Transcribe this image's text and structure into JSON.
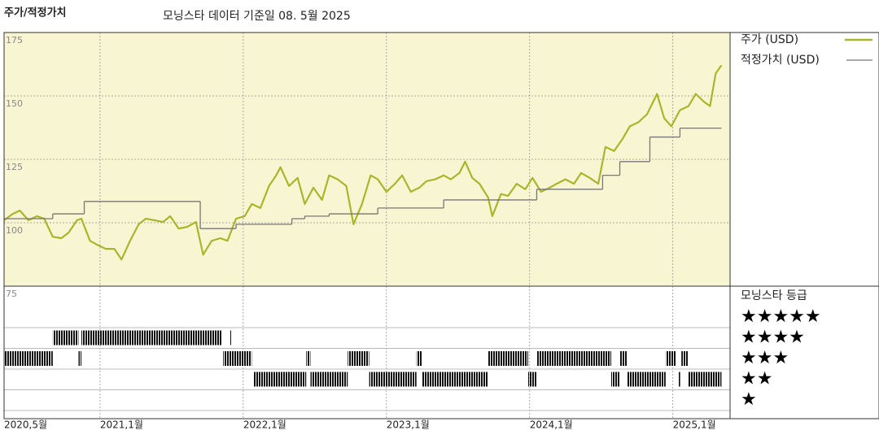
{
  "chart_data": {
    "type": "line",
    "title": "주가/적정가치",
    "subtitle": "모닝스타 데이터 기준일 08. 5월 2025",
    "xlim": [
      2020.33,
      2025.4
    ],
    "xticks": [
      {
        "value": 2020.33,
        "label": "2020,5월"
      },
      {
        "value": 2021,
        "label": "2021,1월"
      },
      {
        "value": 2022,
        "label": "2022,1월"
      },
      {
        "value": 2023,
        "label": "2023,1월"
      },
      {
        "value": 2024,
        "label": "2024,1월"
      },
      {
        "value": 2025,
        "label": "2025,1월"
      }
    ],
    "ylim": [
      75,
      175
    ],
    "yticks": [
      75,
      100,
      125,
      150,
      175
    ],
    "grid": true,
    "series": [
      {
        "name": "주가 (USD)",
        "color": "#a9b52a",
        "x": [
          2020.33,
          2020.39,
          2020.44,
          2020.5,
          2020.56,
          2020.61,
          2020.67,
          2020.73,
          2020.78,
          2020.84,
          2020.87,
          2020.93,
          2020.98,
          2021.04,
          2021.1,
          2021.15,
          2021.21,
          2021.27,
          2021.32,
          2021.38,
          2021.44,
          2021.49,
          2021.55,
          2021.61,
          2021.67,
          2021.72,
          2021.78,
          2021.84,
          2021.89,
          2021.95,
          2022.01,
          2022.06,
          2022.12,
          2022.18,
          2022.23,
          2022.26,
          2022.32,
          2022.38,
          2022.43,
          2022.49,
          2022.55,
          2022.6,
          2022.66,
          2022.72,
          2022.77,
          2022.83,
          2022.89,
          2022.94,
          2023.0,
          2023.06,
          2023.11,
          2023.17,
          2023.23,
          2023.28,
          2023.34,
          2023.4,
          2023.45,
          2023.51,
          2023.55,
          2023.6,
          2023.65,
          2023.71,
          2023.74,
          2023.8,
          2023.85,
          2023.91,
          2023.97,
          2024.02,
          2024.08,
          2024.14,
          2024.19,
          2024.25,
          2024.31,
          2024.36,
          2024.42,
          2024.48,
          2024.53,
          2024.59,
          2024.65,
          2024.7,
          2024.76,
          2024.82,
          2024.89,
          2024.94,
          2024.99,
          2025.05,
          2025.11,
          2025.16,
          2025.22,
          2025.26,
          2025.3,
          2025.34
        ],
        "values": [
          101.0,
          103.5,
          104.8,
          101.0,
          102.6,
          101.6,
          94.5,
          93.9,
          96.1,
          101.0,
          101.6,
          92.9,
          91.3,
          89.7,
          89.7,
          85.5,
          92.9,
          99.4,
          101.6,
          101.0,
          100.3,
          102.6,
          97.7,
          98.4,
          100.3,
          87.4,
          92.9,
          93.9,
          92.9,
          101.6,
          102.6,
          107.4,
          105.8,
          114.5,
          118.7,
          121.9,
          114.5,
          117.7,
          107.4,
          113.8,
          109.0,
          118.7,
          117.1,
          114.5,
          99.4,
          107.4,
          118.7,
          117.1,
          112.2,
          115.4,
          118.7,
          112.2,
          113.8,
          116.4,
          117.1,
          118.7,
          117.1,
          119.6,
          124.1,
          117.7,
          115.4,
          110.0,
          102.6,
          111.3,
          110.6,
          115.4,
          113.2,
          117.7,
          112.2,
          113.8,
          115.4,
          117.1,
          115.4,
          119.6,
          117.7,
          115.4,
          129.9,
          128.3,
          133.1,
          138.0,
          139.6,
          142.8,
          150.8,
          141.2,
          138.0,
          144.4,
          146.0,
          150.8,
          147.6,
          146.0,
          158.9,
          162.1
        ]
      },
      {
        "name": "적정가치 (USD)",
        "color": "#777777",
        "step": true,
        "x": [
          2020.33,
          2020.67,
          2020.89,
          2021.7,
          2021.95,
          2022.34,
          2022.43,
          2022.6,
          2022.94,
          2023.4,
          2024.05,
          2024.51,
          2024.63,
          2024.84,
          2025.05
        ],
        "values": [
          101.6,
          103.5,
          108.4,
          97.7,
          99.4,
          101.6,
          102.6,
          103.5,
          105.8,
          109.0,
          113.2,
          118.7,
          124.1,
          133.8,
          137.3
        ]
      }
    ],
    "rating": {
      "title": "모닝스타 등급",
      "labels": [
        "★",
        "★★",
        "★★★",
        "★★★★",
        "★★★★★"
      ],
      "periods": [
        {
          "start": 2020.33,
          "end": 2020.67,
          "stars": 3
        },
        {
          "start": 2020.67,
          "end": 2020.85,
          "stars": 4
        },
        {
          "start": 2020.85,
          "end": 2020.87,
          "stars": 3
        },
        {
          "start": 2020.87,
          "end": 2021.85,
          "stars": 4
        },
        {
          "start": 2021.86,
          "end": 2022.06,
          "stars": 3
        },
        {
          "start": 2021.91,
          "end": 2021.92,
          "stars": 4
        },
        {
          "start": 2022.07,
          "end": 2022.44,
          "stars": 2
        },
        {
          "start": 2022.44,
          "end": 2022.47,
          "stars": 3
        },
        {
          "start": 2022.47,
          "end": 2022.73,
          "stars": 2
        },
        {
          "start": 2022.73,
          "end": 2022.88,
          "stars": 3
        },
        {
          "start": 2022.88,
          "end": 2023.21,
          "stars": 2
        },
        {
          "start": 2023.21,
          "end": 2023.25,
          "stars": 3
        },
        {
          "start": 2023.25,
          "end": 2023.71,
          "stars": 2
        },
        {
          "start": 2023.71,
          "end": 2023.99,
          "stars": 3
        },
        {
          "start": 2023.99,
          "end": 2024.05,
          "stars": 2
        },
        {
          "start": 2024.05,
          "end": 2024.57,
          "stars": 3
        },
        {
          "start": 2024.57,
          "end": 2024.63,
          "stars": 2
        },
        {
          "start": 2024.63,
          "end": 2024.68,
          "stars": 3
        },
        {
          "start": 2024.68,
          "end": 2024.95,
          "stars": 2
        },
        {
          "start": 2024.95,
          "end": 2025.02,
          "stars": 3
        },
        {
          "start": 2025.04,
          "end": 2025.05,
          "stars": 2
        },
        {
          "start": 2025.06,
          "end": 2025.11,
          "stars": 3
        },
        {
          "start": 2025.11,
          "end": 2025.34,
          "stars": 2
        }
      ]
    }
  }
}
